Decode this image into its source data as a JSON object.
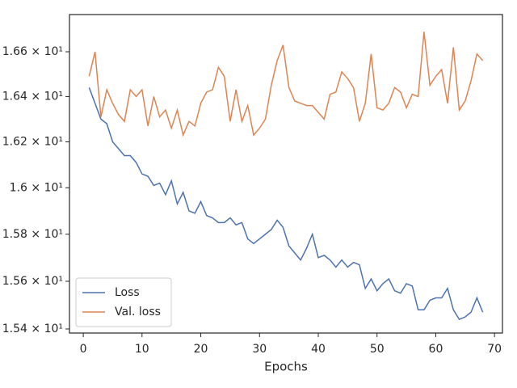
{
  "chart_data": {
    "type": "line",
    "xlabel": "Epochs",
    "x": [
      1,
      2,
      3,
      4,
      5,
      6,
      7,
      8,
      9,
      10,
      11,
      12,
      13,
      14,
      15,
      16,
      17,
      18,
      19,
      20,
      21,
      22,
      23,
      24,
      25,
      26,
      27,
      28,
      29,
      30,
      31,
      32,
      33,
      34,
      35,
      36,
      37,
      38,
      39,
      40,
      41,
      42,
      43,
      44,
      45,
      46,
      47,
      48,
      49,
      50,
      51,
      52,
      53,
      54,
      55,
      56,
      57,
      58,
      59,
      60,
      61,
      62,
      63,
      64,
      65,
      66,
      67,
      68
    ],
    "series": [
      {
        "name": "Loss",
        "color": "#4c72b0",
        "values": [
          16.44,
          16.37,
          16.3,
          16.28,
          16.2,
          16.17,
          16.14,
          16.14,
          16.11,
          16.06,
          16.05,
          16.01,
          16.02,
          15.97,
          16.03,
          15.93,
          15.98,
          15.9,
          15.89,
          15.94,
          15.88,
          15.87,
          15.85,
          15.85,
          15.87,
          15.84,
          15.85,
          15.78,
          15.76,
          15.78,
          15.8,
          15.82,
          15.86,
          15.83,
          15.75,
          15.72,
          15.69,
          15.74,
          15.8,
          15.7,
          15.71,
          15.69,
          15.66,
          15.69,
          15.66,
          15.68,
          15.67,
          15.57,
          15.61,
          15.56,
          15.59,
          15.61,
          15.56,
          15.55,
          15.59,
          15.58,
          15.48,
          15.48,
          15.52,
          15.53,
          15.53,
          15.57,
          15.48,
          15.44,
          15.45,
          15.47,
          15.53,
          15.47
        ]
      },
      {
        "name": "Val. loss",
        "color": "#dd8452",
        "values": [
          16.49,
          16.6,
          16.31,
          16.43,
          16.37,
          16.32,
          16.29,
          16.43,
          16.4,
          16.43,
          16.27,
          16.4,
          16.31,
          16.34,
          16.26,
          16.34,
          16.23,
          16.29,
          16.27,
          16.37,
          16.42,
          16.43,
          16.53,
          16.49,
          16.29,
          16.43,
          16.29,
          16.36,
          16.23,
          16.26,
          16.3,
          16.45,
          16.56,
          16.63,
          16.44,
          16.38,
          16.37,
          16.36,
          16.36,
          16.33,
          16.3,
          16.41,
          16.42,
          16.51,
          16.48,
          16.44,
          16.29,
          16.37,
          16.59,
          16.35,
          16.34,
          16.37,
          16.44,
          16.42,
          16.35,
          16.41,
          16.4,
          16.69,
          16.45,
          16.49,
          16.52,
          16.37,
          16.62,
          16.34,
          16.38,
          16.47,
          16.59,
          16.56
        ]
      }
    ],
    "xlim": [
      -2.35,
      71.35
    ],
    "xticks": [
      0,
      10,
      20,
      30,
      40,
      50,
      60,
      70
    ],
    "ylim": [
      15.383,
      16.768
    ],
    "yscale": "log",
    "yticks": [
      {
        "value": 15.4,
        "label": "1.54 × 10¹"
      },
      {
        "value": 15.6,
        "label": "1.56 × 10¹"
      },
      {
        "value": 15.8,
        "label": "1.58 × 10¹"
      },
      {
        "value": 16.0,
        "label": "1.6 × 10¹"
      },
      {
        "value": 16.2,
        "label": "1.62 × 10¹"
      },
      {
        "value": 16.4,
        "label": "1.64 × 10¹"
      },
      {
        "value": 16.6,
        "label": "1.66 × 10¹"
      }
    ],
    "legend": "lower left"
  }
}
